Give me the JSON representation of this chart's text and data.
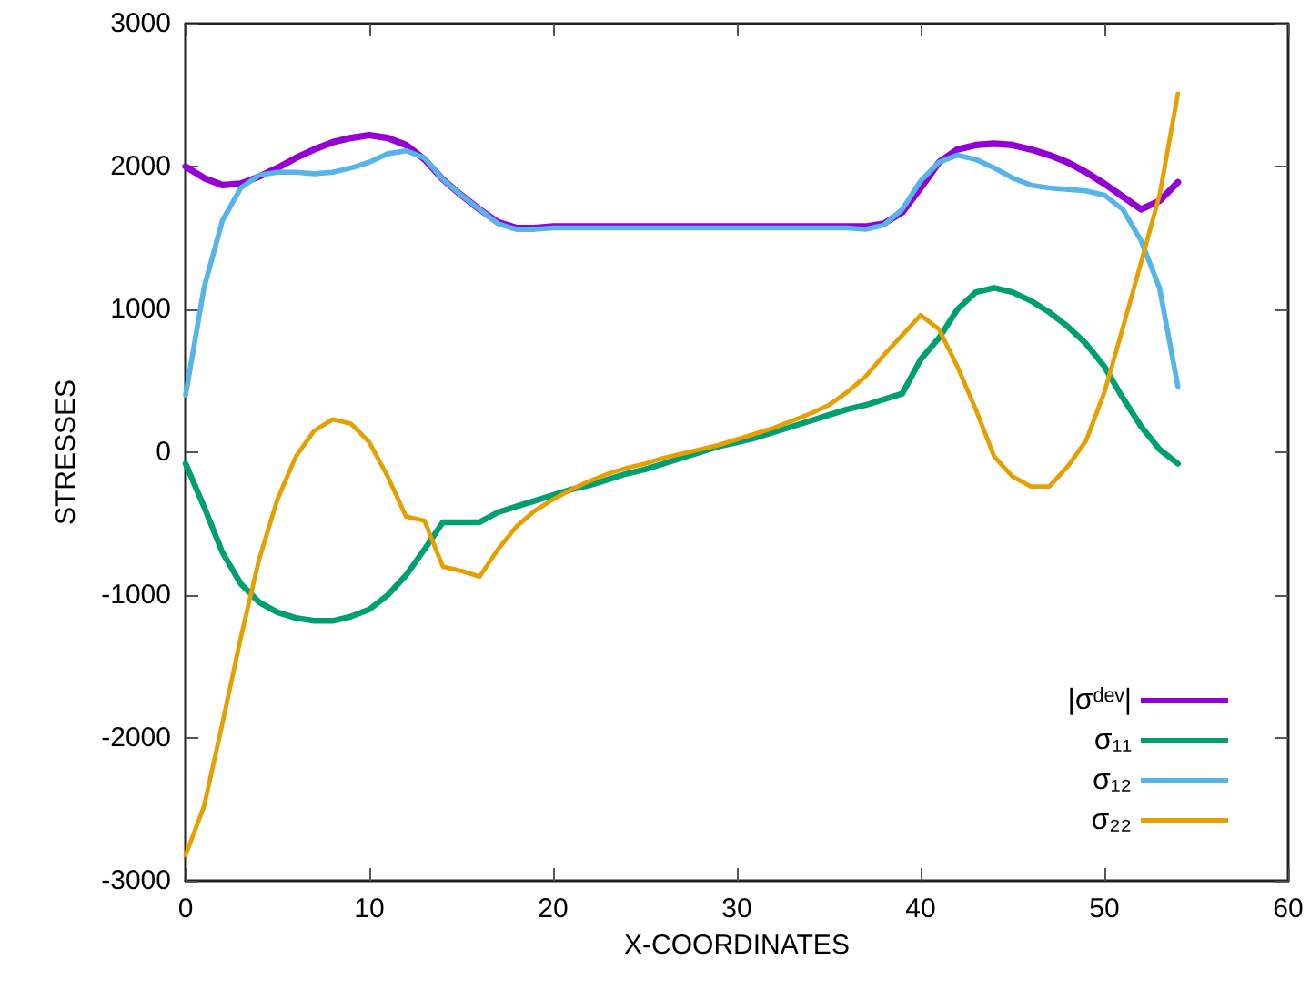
{
  "chart_data": {
    "type": "line",
    "xlabel": "X-COORDINATES",
    "ylabel": "STRESSES",
    "x": [
      0,
      1,
      2,
      3,
      4,
      5,
      6,
      7,
      8,
      9,
      10,
      11,
      12,
      13,
      14,
      15,
      16,
      17,
      18,
      19,
      20,
      21,
      22,
      23,
      24,
      25,
      26,
      27,
      28,
      29,
      30,
      31,
      32,
      33,
      34,
      35,
      36,
      37,
      38,
      39,
      40,
      41,
      42,
      43,
      44,
      45,
      46,
      47,
      48,
      49,
      50,
      51,
      52,
      53,
      54
    ],
    "series": [
      {
        "name": "|σᵈᵉᵛ|",
        "color": "#9400d3",
        "values": [
          2000,
          1920,
          1870,
          1880,
          1930,
          1990,
          2060,
          2120,
          2170,
          2200,
          2220,
          2200,
          2150,
          2050,
          1910,
          1800,
          1700,
          1610,
          1570,
          1570,
          1580,
          1580,
          1580,
          1580,
          1580,
          1580,
          1580,
          1580,
          1580,
          1580,
          1580,
          1580,
          1580,
          1580,
          1580,
          1580,
          1580,
          1580,
          1600,
          1680,
          1850,
          2030,
          2120,
          2150,
          2160,
          2150,
          2120,
          2080,
          2030,
          1960,
          1880,
          1790,
          1700,
          1760,
          1890
        ]
      },
      {
        "name": "σ₁₁",
        "color": "#009e73",
        "values": [
          -80,
          -380,
          -700,
          -920,
          -1050,
          -1120,
          -1160,
          -1180,
          -1180,
          -1150,
          -1100,
          -1000,
          -860,
          -680,
          -490,
          -490,
          -490,
          -420,
          -380,
          -340,
          -300,
          -260,
          -230,
          -190,
          -150,
          -120,
          -80,
          -40,
          0,
          40,
          70,
          100,
          140,
          180,
          220,
          260,
          300,
          330,
          370,
          410,
          650,
          800,
          1000,
          1120,
          1150,
          1120,
          1060,
          980,
          880,
          760,
          600,
          380,
          180,
          20,
          -80
        ]
      },
      {
        "name": "σ₁₂",
        "color": "#56b4e9",
        "values": [
          400,
          1150,
          1620,
          1850,
          1940,
          1960,
          1960,
          1950,
          1960,
          1990,
          2030,
          2090,
          2110,
          2060,
          1910,
          1800,
          1700,
          1600,
          1560,
          1560,
          1570,
          1570,
          1570,
          1570,
          1570,
          1570,
          1570,
          1570,
          1570,
          1570,
          1570,
          1570,
          1570,
          1570,
          1570,
          1570,
          1570,
          1560,
          1590,
          1700,
          1900,
          2030,
          2080,
          2050,
          1990,
          1920,
          1870,
          1850,
          1840,
          1830,
          1800,
          1700,
          1480,
          1150,
          460
        ]
      },
      {
        "name": "σ₂₂",
        "color": "#e69f00",
        "values": [
          -2820,
          -2480,
          -1900,
          -1300,
          -750,
          -330,
          -30,
          150,
          230,
          200,
          70,
          -170,
          -450,
          -480,
          -800,
          -830,
          -870,
          -680,
          -520,
          -410,
          -330,
          -260,
          -200,
          -150,
          -110,
          -80,
          -40,
          -10,
          20,
          50,
          90,
          130,
          170,
          220,
          270,
          330,
          420,
          530,
          680,
          820,
          960,
          860,
          600,
          300,
          -30,
          -170,
          -240,
          -240,
          -100,
          80,
          420,
          870,
          1330,
          1800,
          2510
        ]
      }
    ],
    "xlim": [
      0,
      60
    ],
    "xticks": [
      0,
      10,
      20,
      30,
      40,
      50,
      60
    ],
    "ylim": [
      -3000,
      3000
    ],
    "yticks": [
      -3000,
      -2000,
      -1000,
      0,
      1000,
      2000,
      3000
    ],
    "legend": "bottom right",
    "marker": "none",
    "line_style": "solid"
  }
}
